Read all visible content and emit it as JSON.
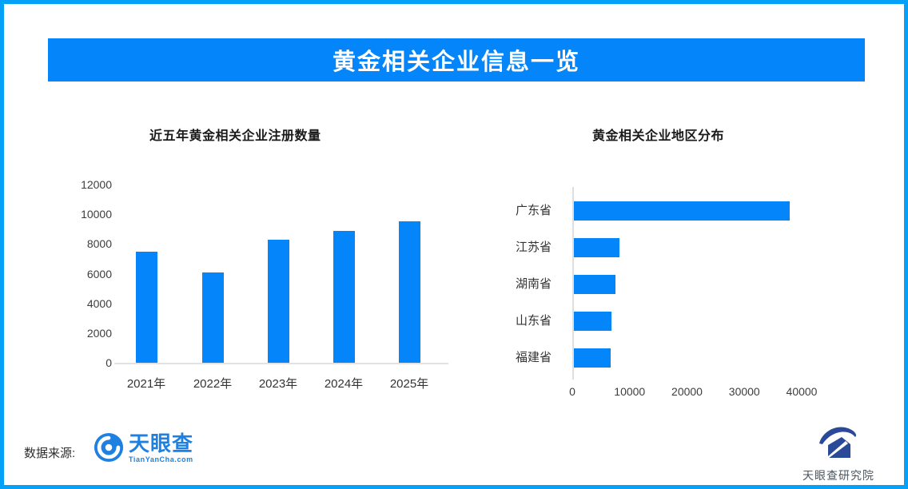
{
  "page": {
    "title": "黄金相关企业信息一览"
  },
  "colors": {
    "accent_blue": "#0585FA",
    "border_blue": "#05A0F8",
    "axis_line": "#DEDEDE",
    "tianyancha_blue": "#1E80E0",
    "research_navy": "#2A4A99"
  },
  "chart_data": [
    {
      "type": "bar",
      "orientation": "vertical",
      "title": "近五年黄金相关企业注册数量",
      "categories": [
        "2021年",
        "2022年",
        "2023年",
        "2024年",
        "2025年"
      ],
      "values": [
        7500,
        6100,
        8300,
        8900,
        9550
      ],
      "ylim": [
        0,
        12000
      ],
      "yticks": [
        0,
        2000,
        4000,
        6000,
        8000,
        10000,
        12000
      ],
      "bar_color": "#0585FA",
      "grid": false,
      "legend": "none"
    },
    {
      "type": "bar",
      "orientation": "horizontal",
      "title": "黄金相关企业地区分布",
      "categories": [
        "广东省",
        "江苏省",
        "湖南省",
        "山东省",
        "福建省"
      ],
      "values": [
        37700,
        8000,
        7300,
        6600,
        6400
      ],
      "xlim": [
        0,
        42000
      ],
      "xticks": [
        0,
        10000,
        20000,
        30000,
        40000
      ],
      "bar_color": "#0585FA",
      "grid": false,
      "legend": "none"
    }
  ],
  "footer": {
    "source_label": "数据来源:",
    "tianyancha_name": "天眼查",
    "tianyancha_domain": "TianYanCha.com",
    "research_name": "天眼查研究院"
  }
}
